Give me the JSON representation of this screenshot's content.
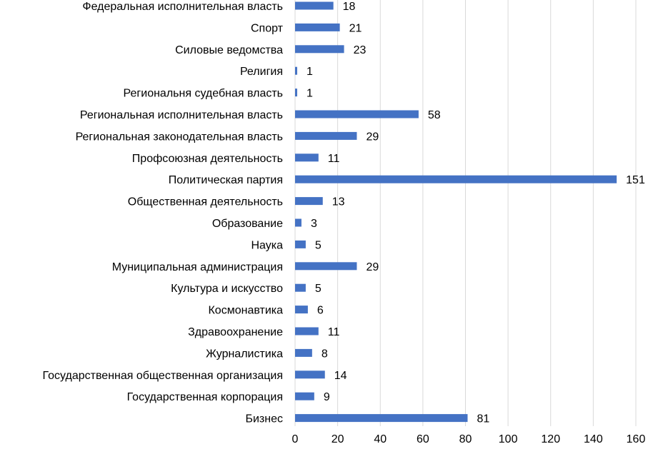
{
  "chart_data": {
    "type": "bar",
    "orientation": "horizontal",
    "categories": [
      "Федеральная исполнительная власть",
      "Спорт",
      "Силовые ведомства",
      "Религия",
      "Региональня судебная власть",
      "Региональная исполнительная власть",
      "Региональная законодательная власть",
      "Профсоюзная деятельность",
      "Политическая партия",
      "Общественная деятельность",
      "Образование",
      "Наука",
      "Муниципальная администрация",
      "Культура и искусство",
      "Космонавтика",
      "Здравоохранение",
      "Журналистика",
      "Государственная общественная организация",
      "Государственная корпорация",
      "Бизнес"
    ],
    "values": [
      18,
      21,
      23,
      1,
      1,
      58,
      29,
      11,
      151,
      13,
      3,
      5,
      29,
      5,
      6,
      11,
      8,
      14,
      9,
      81
    ],
    "xlim": [
      0,
      160
    ],
    "xticks": [
      0,
      20,
      40,
      60,
      80,
      100,
      120,
      140,
      160
    ],
    "grid": "vertical",
    "title": "",
    "xlabel": "",
    "ylabel": "",
    "legend": "none",
    "bar_color": "#4472c4"
  }
}
